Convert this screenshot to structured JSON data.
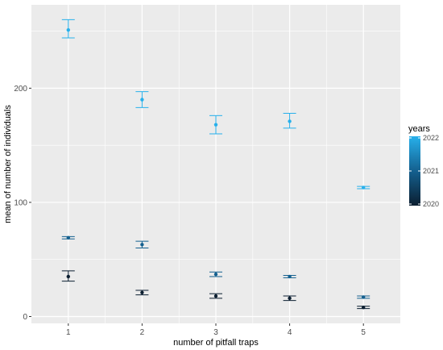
{
  "chart_data": {
    "type": "scatter",
    "xlabel": "number of pitfall traps",
    "ylabel": "mean of number of individuals",
    "x_ticks": [
      "1",
      "2",
      "3",
      "4",
      "5"
    ],
    "y_ticks": [
      0,
      100,
      200
    ],
    "xlim": [
      0.5,
      5.5
    ],
    "ylim": [
      -6,
      273
    ],
    "grid": true,
    "legend": {
      "title": "years",
      "placement": "right",
      "labels": [
        "2022",
        "2021",
        "2020"
      ],
      "colors": {
        "2022": "#27B0EB",
        "2021": "#14608F",
        "2020": "#0B1E30"
      }
    },
    "series": [
      {
        "name": "2022",
        "color": "#27B0EB",
        "points": [
          {
            "x": 1,
            "y": 251,
            "ymin": 244,
            "ymax": 260
          },
          {
            "x": 2,
            "y": 190,
            "ymin": 183,
            "ymax": 197
          },
          {
            "x": 3,
            "y": 168,
            "ymin": 160,
            "ymax": 176
          },
          {
            "x": 4,
            "y": 171,
            "ymin": 165,
            "ymax": 178
          },
          {
            "x": 5,
            "y": 113,
            "ymin": 112,
            "ymax": 114
          }
        ]
      },
      {
        "name": "2021",
        "color": "#14608F",
        "points": [
          {
            "x": 1,
            "y": 69,
            "ymin": 68,
            "ymax": 70
          },
          {
            "x": 2,
            "y": 63,
            "ymin": 60,
            "ymax": 66
          },
          {
            "x": 3,
            "y": 37,
            "ymin": 35,
            "ymax": 39
          },
          {
            "x": 4,
            "y": 35,
            "ymin": 34,
            "ymax": 36
          },
          {
            "x": 5,
            "y": 17,
            "ymin": 16,
            "ymax": 18
          }
        ]
      },
      {
        "name": "2020",
        "color": "#0B1E30",
        "points": [
          {
            "x": 1,
            "y": 35,
            "ymin": 31,
            "ymax": 40
          },
          {
            "x": 2,
            "y": 21,
            "ymin": 19,
            "ymax": 23
          },
          {
            "x": 3,
            "y": 18,
            "ymin": 16,
            "ymax": 20
          },
          {
            "x": 4,
            "y": 16,
            "ymin": 14,
            "ymax": 18
          },
          {
            "x": 5,
            "y": 8,
            "ymin": 7,
            "ymax": 9
          }
        ]
      }
    ]
  }
}
